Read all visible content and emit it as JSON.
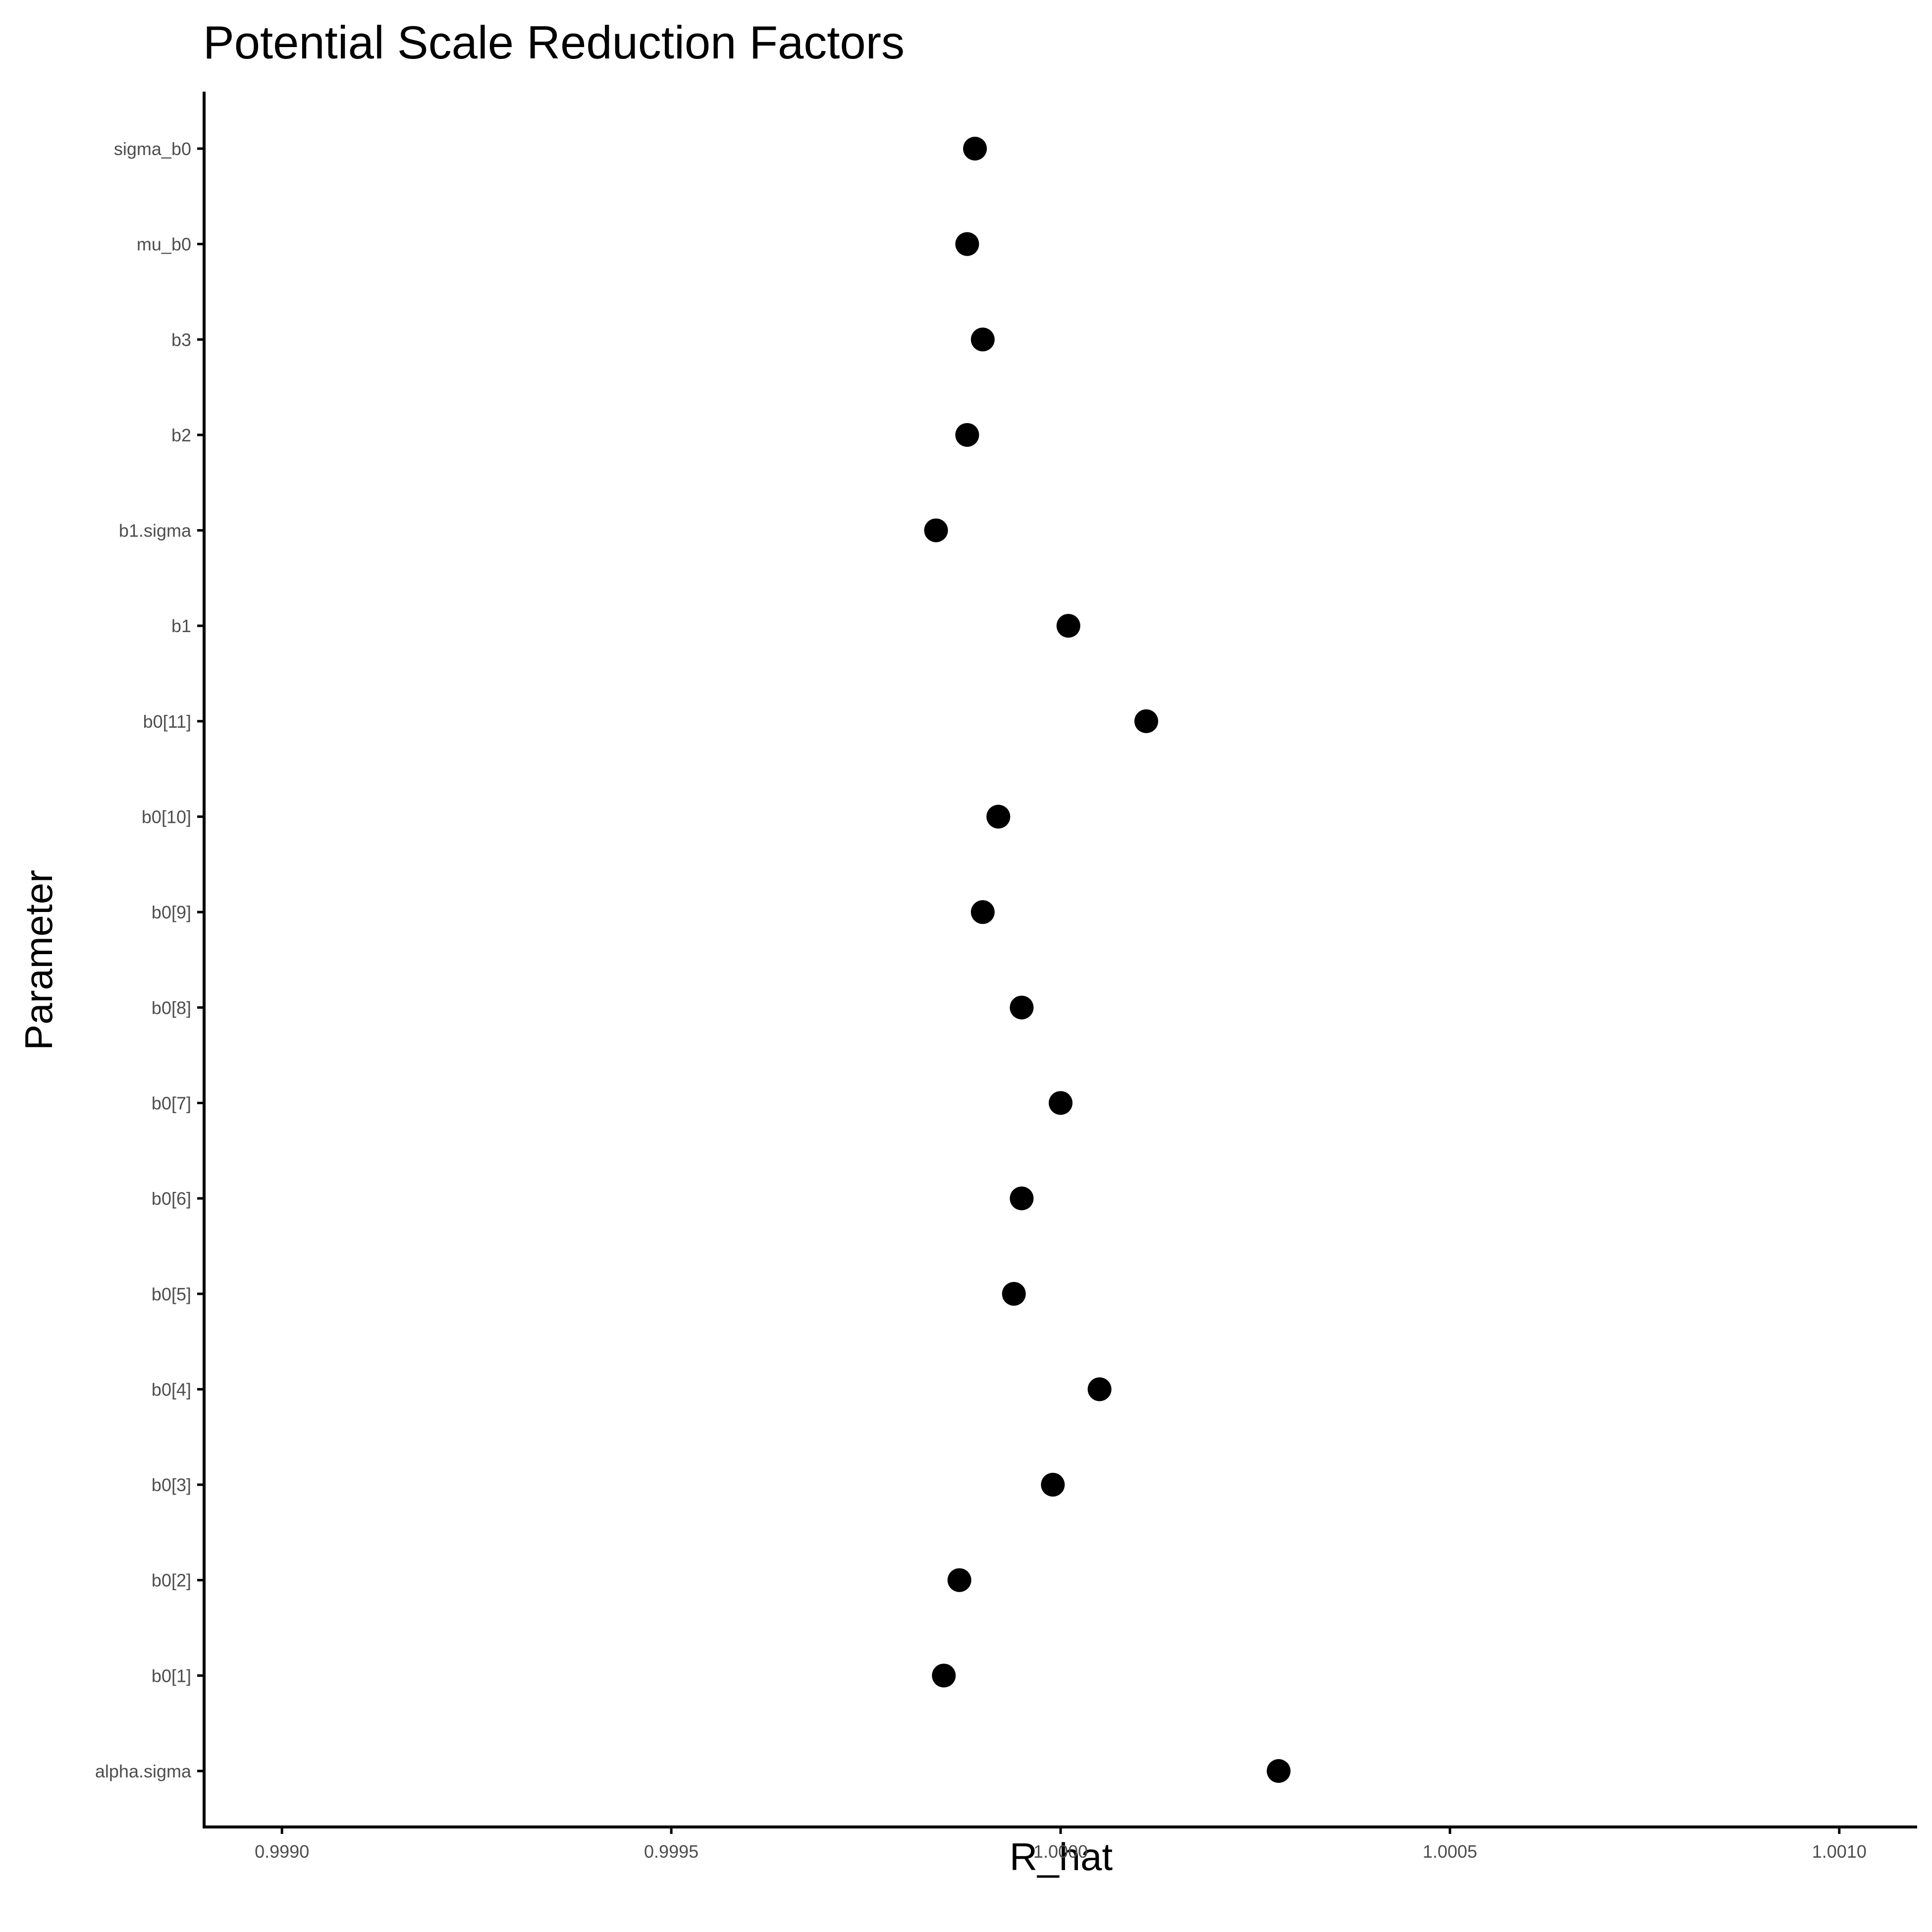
{
  "chart_data": {
    "type": "scatter",
    "title": "Potential Scale Reduction Factors",
    "xlabel": "R_hat",
    "ylabel": "Parameter",
    "xlim": [
      0.9989,
      1.0011
    ],
    "x_ticks": [
      0.999,
      0.9995,
      1.0,
      1.0005,
      1.001
    ],
    "x_tick_labels": [
      "0.9990",
      "0.9995",
      "1.0000",
      "1.0005",
      "1.0010"
    ],
    "grid": false,
    "legend": "none",
    "point_color": "#000000",
    "categories": [
      "sigma_b0",
      "mu_b0",
      "b3",
      "b2",
      "b1.sigma",
      "b1",
      "b0[11]",
      "b0[10]",
      "b0[9]",
      "b0[8]",
      "b0[7]",
      "b0[6]",
      "b0[5]",
      "b0[4]",
      "b0[3]",
      "b0[2]",
      "b0[1]",
      "alpha.sigma"
    ],
    "values": [
      0.99989,
      0.99988,
      0.9999,
      0.99988,
      0.99984,
      1.00001,
      1.00011,
      0.99992,
      0.9999,
      0.99995,
      1.0,
      0.99995,
      0.99994,
      1.00005,
      0.99999,
      0.99987,
      0.99985,
      1.00028
    ]
  }
}
